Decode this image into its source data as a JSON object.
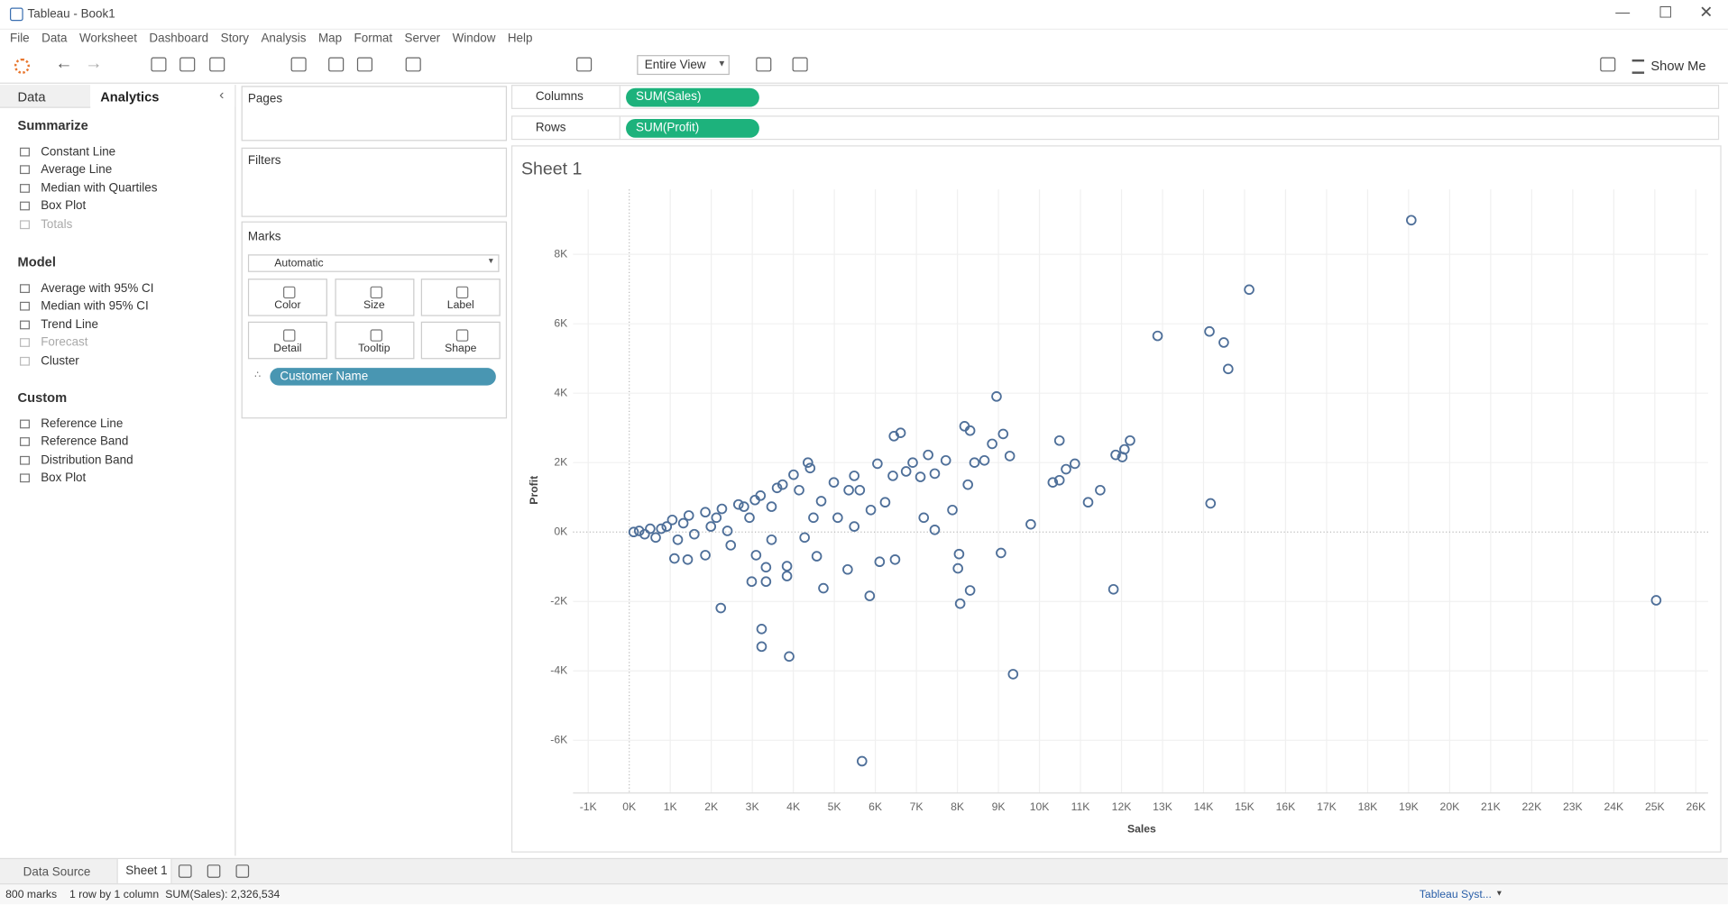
{
  "window": {
    "title": "Tableau - Book1"
  },
  "menu": [
    "File",
    "Data",
    "Worksheet",
    "Dashboard",
    "Story",
    "Analysis",
    "Map",
    "Format",
    "Server",
    "Window",
    "Help"
  ],
  "toolbar": {
    "fit": "Entire View",
    "show_me": "Show Me"
  },
  "side_tabs": [
    "Data",
    "Analytics"
  ],
  "analytics": [
    {
      "heading": "Summarize",
      "items": [
        {
          "label": "Constant Line"
        },
        {
          "label": "Average Line"
        },
        {
          "label": "Median with Quartiles"
        },
        {
          "label": "Box Plot"
        },
        {
          "label": "Totals",
          "enabled": false
        }
      ]
    },
    {
      "heading": "Model",
      "items": [
        {
          "label": "Average with 95% CI"
        },
        {
          "label": "Median with 95% CI"
        },
        {
          "label": "Trend Line"
        },
        {
          "label": "Forecast",
          "enabled": false
        },
        {
          "label": "Cluster"
        }
      ]
    },
    {
      "heading": "Custom",
      "items": [
        {
          "label": "Reference Line"
        },
        {
          "label": "Reference Band"
        },
        {
          "label": "Distribution Band"
        },
        {
          "label": "Box Plot"
        }
      ]
    }
  ],
  "cards": {
    "pages": "Pages",
    "filters": "Filters",
    "marks": "Marks",
    "mark_type": "Automatic",
    "buttons": [
      "Color",
      "Size",
      "Label",
      "Detail",
      "Tooltip",
      "Shape"
    ],
    "pill": "Customer Name"
  },
  "shelves": [
    {
      "label": "Columns",
      "pill": "SUM(Sales)"
    },
    {
      "label": "Rows",
      "pill": "SUM(Profit)"
    }
  ],
  "bottom_tabs": [
    "Data Source",
    "Sheet 1"
  ],
  "status": [
    "800 marks",
    "1 row by 1 column",
    "SUM(Sales): 2,326,534"
  ],
  "user": "Tableau Syst...",
  "chart_data": {
    "type": "scatter",
    "title": "Sheet 1",
    "x_label": "Sales",
    "y_label": "Profit",
    "color": "#4e6f99",
    "grid": true,
    "xlim": [
      -1370,
      26300
    ],
    "ylim": [
      -7520,
      9870
    ],
    "xticks": [
      {
        "value": -1000,
        "label": "-1K"
      },
      {
        "value": 0,
        "label": "0K"
      },
      {
        "value": 1000,
        "label": "1K"
      },
      {
        "value": 2000,
        "label": "2K"
      },
      {
        "value": 3000,
        "label": "3K"
      },
      {
        "value": 4000,
        "label": "4K"
      },
      {
        "value": 5000,
        "label": "5K"
      },
      {
        "value": 6000,
        "label": "6K"
      },
      {
        "value": 7000,
        "label": "7K"
      },
      {
        "value": 8000,
        "label": "8K"
      },
      {
        "value": 9000,
        "label": "9K"
      },
      {
        "value": 10000,
        "label": "10K"
      },
      {
        "value": 11000,
        "label": "11K"
      },
      {
        "value": 12000,
        "label": "12K"
      },
      {
        "value": 13000,
        "label": "13K"
      },
      {
        "value": 14000,
        "label": "14K"
      },
      {
        "value": 15000,
        "label": "15K"
      },
      {
        "value": 16000,
        "label": "16K"
      },
      {
        "value": 17000,
        "label": "17K"
      },
      {
        "value": 18000,
        "label": "18K"
      },
      {
        "value": 19000,
        "label": "19K"
      },
      {
        "value": 20000,
        "label": "20K"
      },
      {
        "value": 21000,
        "label": "21K"
      },
      {
        "value": 22000,
        "label": "22K"
      },
      {
        "value": 23000,
        "label": "23K"
      },
      {
        "value": 24000,
        "label": "24K"
      },
      {
        "value": 25000,
        "label": "25K"
      },
      {
        "value": 26000,
        "label": "26K"
      }
    ],
    "yticks": [
      {
        "value": -6000,
        "label": "-6K"
      },
      {
        "value": -4000,
        "label": "-4K"
      },
      {
        "value": -2000,
        "label": "-2K"
      },
      {
        "value": 0,
        "label": "0K"
      },
      {
        "value": 2000,
        "label": "2K"
      },
      {
        "value": 4000,
        "label": "4K"
      },
      {
        "value": 6000,
        "label": "6K"
      },
      {
        "value": 8000,
        "label": "8K"
      }
    ],
    "x": [
      19064,
      15112,
      12880,
      14144,
      14493,
      14601,
      8954,
      25034,
      14171,
      11804,
      9357,
      5674,
      3899,
      3227,
      3227,
      2232,
      9062,
      9788,
      8040,
      8013,
      8309,
      8067,
      5862,
      5324,
      4733,
      6104,
      6480,
      12208,
      12019,
      11858,
      12073,
      11481,
      11186,
      10863,
      10487,
      10648,
      10325,
      10487,
      9277,
      9115,
      8847,
      8309,
      8174,
      8658,
      8416,
      8255,
      7717,
      7287,
      6615,
      6453,
      7878,
      7448,
      7179,
      7448,
      7098,
      6749,
      6910,
      6426,
      6050,
      5485,
      4987,
      4356,
      4006,
      3603,
      3065,
      5351,
      5889,
      6238,
      5485,
      5082,
      4571,
      3845,
      3845,
      3334,
      3334,
      2985,
      3092,
      2474,
      1855,
      1425,
      1102,
      3469,
      4275,
      4490,
      4679,
      5620,
      2124,
      2796,
      1318,
      780,
      108,
      242,
      376,
      511,
      645,
      914,
      1049,
      1183,
      1452,
      1586,
      1855,
      1990,
      2259,
      2393,
      2662,
      2931,
      3200,
      3469,
      3738,
      4141,
      4410
    ],
    "y": [
      8984,
      6984,
      5651,
      5778,
      5460,
      4698,
      3905,
      -1968,
      825,
      -1651,
      -4095,
      -6603,
      -3587,
      -2794,
      -3302,
      -2190,
      -603,
      222,
      -635,
      -1048,
      -1683,
      -2063,
      -1841,
      -1079,
      -1619,
      -857,
      -794,
      2635,
      2159,
      2222,
      2381,
      1206,
      857,
      1968,
      2635,
      1810,
      1429,
      1492,
      2190,
      2825,
      2540,
      2921,
      3048,
      2063,
      2000,
      1365,
      2063,
      2222,
      2857,
      2762,
      635,
      63,
      413,
      1683,
      1587,
      1746,
      2000,
      1619,
      1968,
      1619,
      1429,
      2000,
      1651,
      1270,
      921,
      1206,
      635,
      857,
      159,
      413,
      -698,
      -984,
      -1270,
      -1016,
      -1429,
      -1429,
      -667,
      -381,
      -667,
      -794,
      -762,
      -222,
      -159,
      413,
      889,
      1206,
      413,
      730,
      254,
      95,
      0,
      32,
      -63,
      95,
      -159,
      159,
      349,
      -222,
      476,
      -63,
      571,
      159,
      667,
      32,
      794,
      413,
      1048,
      730,
      1365,
      1206,
      1841
    ]
  }
}
